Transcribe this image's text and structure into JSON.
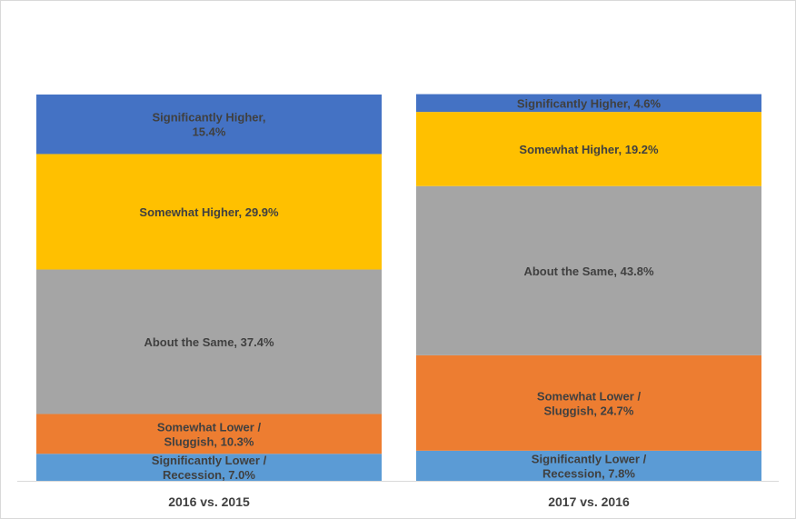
{
  "chart_data": {
    "type": "bar",
    "stacked": true,
    "categories": [
      "2016 vs. 2015",
      "2017 vs. 2016"
    ],
    "ylim": [
      0,
      100
    ],
    "grid": false,
    "legend": "none",
    "series": [
      {
        "name": "Significantly Lower / Recession",
        "color": "#5b9bd5",
        "values": [
          7.0,
          7.8
        ],
        "labels": [
          [
            "Significantly Lower /",
            "Recession, 7.0%"
          ],
          [
            "Significantly Lower /",
            "Recession, 7.8%"
          ]
        ]
      },
      {
        "name": "Somewhat Lower / Sluggish",
        "color": "#ed7d31",
        "values": [
          10.3,
          24.7
        ],
        "labels": [
          [
            "Somewhat Lower /",
            "Sluggish, 10.3%"
          ],
          [
            "Somewhat Lower /",
            "Sluggish, 24.7%"
          ]
        ]
      },
      {
        "name": "About the Same",
        "color": "#a5a5a5",
        "values": [
          37.4,
          43.8
        ],
        "labels": [
          [
            "About the Same, 37.4%"
          ],
          [
            "About the Same, 43.8%"
          ]
        ]
      },
      {
        "name": "Somewhat Higher",
        "color": "#ffc000",
        "values": [
          29.9,
          19.2
        ],
        "labels": [
          [
            "Somewhat Higher, 29.9%"
          ],
          [
            "Somewhat Higher, 19.2%"
          ]
        ]
      },
      {
        "name": "Significantly Higher",
        "color": "#4472c4",
        "values": [
          15.4,
          4.6
        ],
        "labels": [
          [
            "Significantly Higher,",
            "15.4%"
          ],
          [
            "Significantly Higher, 4.6%"
          ]
        ]
      }
    ]
  }
}
